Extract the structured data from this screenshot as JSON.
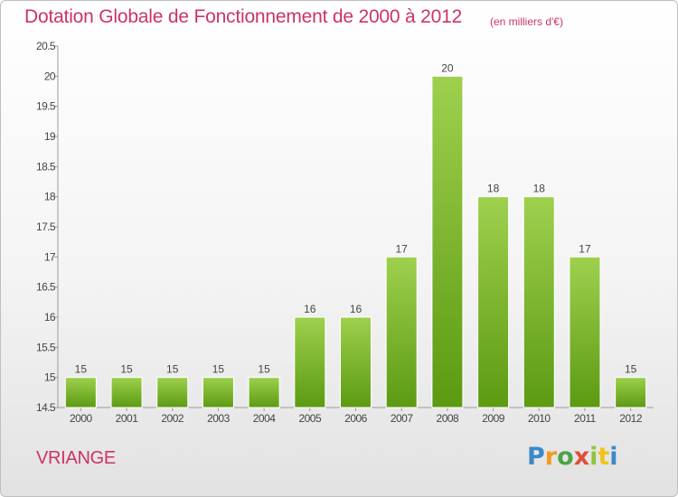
{
  "header": {
    "title": "Dotation Globale de Fonctionnement de 2000 à 2012",
    "unit": "(en milliers d'€)"
  },
  "commune": "VRIANGE",
  "logo": {
    "text": "Proxiti",
    "letters": [
      "P",
      "r",
      "o",
      "x",
      "i",
      "t",
      "i"
    ],
    "colors": [
      "#3a89c8",
      "#f29a21",
      "#4aa546",
      "#e24c3b",
      "#8dc63f",
      "#f0c419",
      "#3a89c8"
    ]
  },
  "colors": {
    "accent": "#cc3366",
    "bar_top": "#9ed04e",
    "bar_bottom": "#5c9a12"
  },
  "chart_data": {
    "type": "bar",
    "title": "Dotation Globale de Fonctionnement de 2000 à 2012",
    "subtitle": "(en milliers d'€)",
    "categories": [
      "2000",
      "2001",
      "2002",
      "2003",
      "2004",
      "2005",
      "2006",
      "2007",
      "2008",
      "2009",
      "2010",
      "2011",
      "2012"
    ],
    "values": [
      15,
      15,
      15,
      15,
      15,
      16,
      16,
      17,
      20,
      18,
      18,
      17,
      15
    ],
    "data_labels": [
      "15",
      "15",
      "15",
      "15",
      "15",
      "16",
      "16",
      "17",
      "20",
      "18",
      "18",
      "17",
      "15"
    ],
    "ylim": [
      14.5,
      20.5
    ],
    "yticks": [
      14.5,
      15,
      15.5,
      16,
      16.5,
      17,
      17.5,
      18,
      18.5,
      19,
      19.5,
      20,
      20.5
    ],
    "ytick_labels": [
      "14.5",
      "15",
      "15.5",
      "16",
      "16.5",
      "17",
      "17.5",
      "18",
      "18.5",
      "19",
      "19.5",
      "20",
      "20.5"
    ],
    "xlabel": "",
    "ylabel": "",
    "grid": false,
    "legend": "none"
  }
}
